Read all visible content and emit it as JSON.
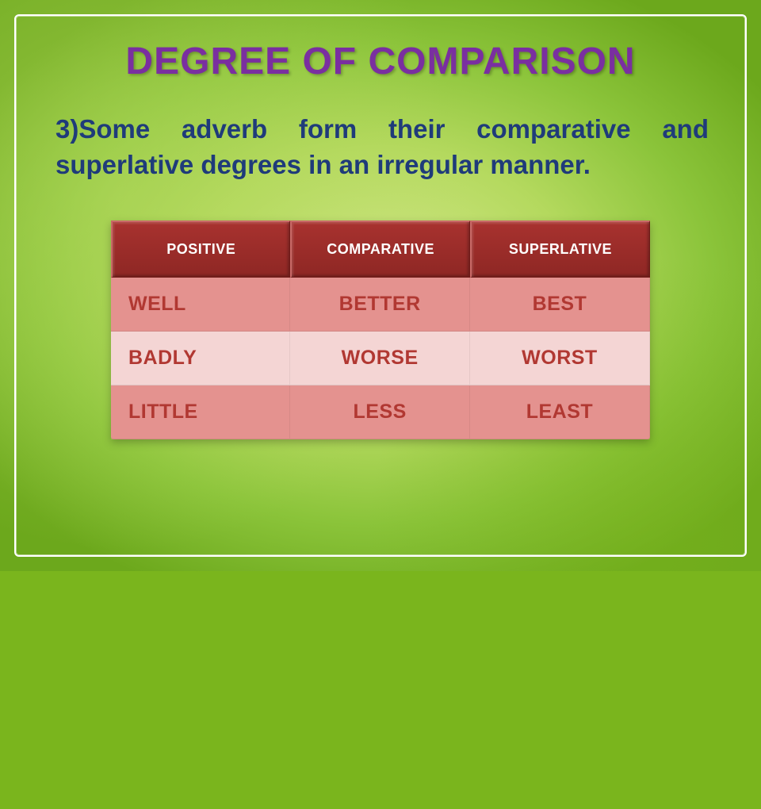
{
  "title": "DEGREE OF COMPARISON",
  "subtitle": "3)Some adverb form their comparative and superlative degrees in an irregular manner.",
  "table": {
    "columns": [
      "POSITIVE",
      "COMPARATIVE",
      "SUPERLATIVE"
    ],
    "rows": [
      [
        "WELL",
        "BETTER",
        "BEST"
      ],
      [
        "BADLY",
        "WORSE",
        "WORST"
      ],
      [
        "LITTLE",
        "LESS",
        "LEAST"
      ]
    ],
    "header_bg": "#8e2724",
    "header_text": "#ffffff",
    "row_alt_a": "#e4928f",
    "row_alt_b": "#f4d5d4",
    "cell_text": "#b13832",
    "header_fontsize": 18,
    "cell_fontsize": 25
  },
  "colors": {
    "title": "#7a2fa0",
    "subtitle": "#1f3b7a",
    "bg_light": "#d4e88a",
    "bg_mid": "#8bc43a",
    "bg_dark": "#6ca81c",
    "frame": "#ffffff"
  },
  "fonts": {
    "title_size": 48,
    "subtitle_size": 33
  }
}
